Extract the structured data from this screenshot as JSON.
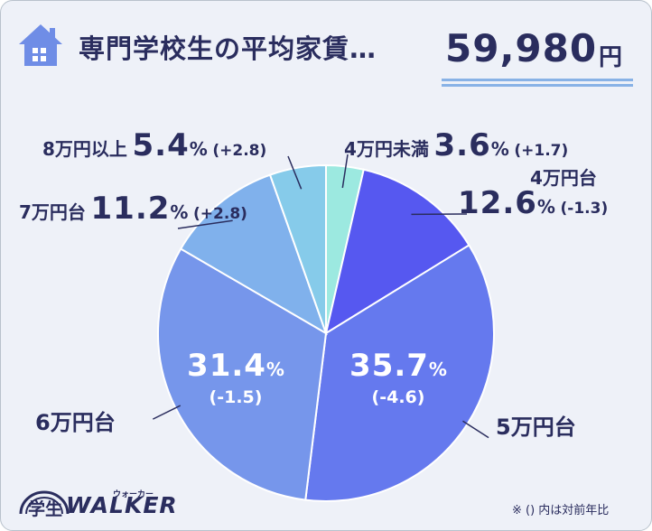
{
  "header": {
    "title": "専門学校生の平均家賃…",
    "value": "59,980",
    "unit": "円"
  },
  "footnote": "※ () 内は対前年比",
  "logo": {
    "text1": "学生",
    "text2": "WALKER",
    "kana": "ウォーカー"
  },
  "colors": {
    "text": "#2a2d5e",
    "background": "#eef1f8",
    "accent_line": "#88b2e6"
  },
  "chart_data": {
    "type": "pie",
    "start_angle_deg": 0,
    "direction": "clockwise",
    "slices": [
      {
        "label": "4万円未満",
        "value": 3.6,
        "pct_text": "3.6",
        "unit": "%",
        "change": "(+1.7)",
        "color": "#9ce9e0"
      },
      {
        "label": "4万円台",
        "value": 12.6,
        "pct_text": "12.6",
        "unit": "%",
        "change": "(-1.3)",
        "color": "#5658f0"
      },
      {
        "label": "5万円台",
        "value": 35.7,
        "pct_text": "35.7",
        "unit": "%",
        "change": "(-4.6)",
        "color": "#6579ee"
      },
      {
        "label": "6万円台",
        "value": 31.4,
        "pct_text": "31.4",
        "unit": "%",
        "change": "(-1.5)",
        "color": "#7696eb"
      },
      {
        "label": "7万円台",
        "value": 11.2,
        "pct_text": "11.2",
        "unit": "%",
        "change": "(+2.8)",
        "color": "#80b1ec"
      },
      {
        "label": "8万円以上",
        "value": 5.4,
        "pct_text": "5.4",
        "unit": "%",
        "change": "(+2.8)",
        "color": "#86cbea"
      }
    ]
  }
}
